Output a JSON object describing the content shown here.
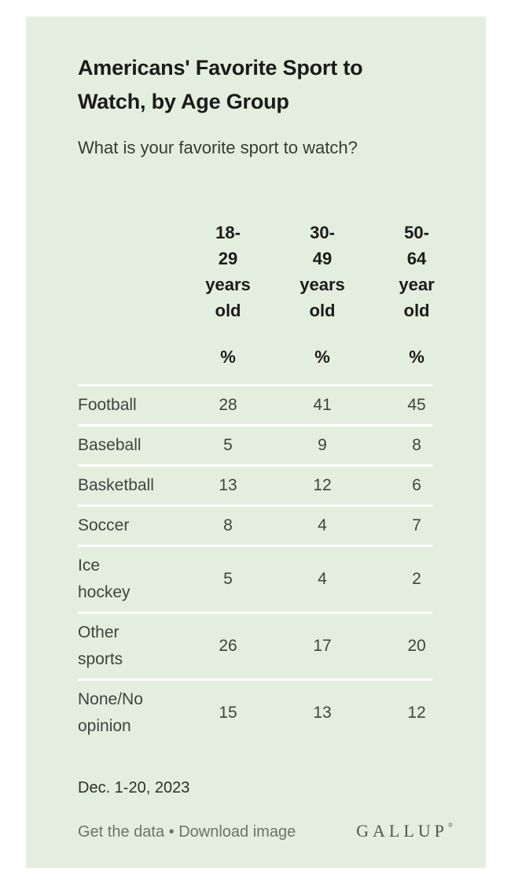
{
  "card": {
    "title": "Americans' Favorite Sport to\nWatch, by Age Group",
    "subtitle": "What is your favorite sport to watch?",
    "table": {
      "columns": [
        {
          "label": "18-\n29\nyears\nold",
          "unit": "%"
        },
        {
          "label": "30-\n49\nyears\nold",
          "unit": "%"
        },
        {
          "label": "50-\n64\nyear\nold",
          "unit": "%"
        }
      ],
      "rows": [
        {
          "label": "Football",
          "values": [
            "28",
            "41",
            "45"
          ]
        },
        {
          "label": "Baseball",
          "values": [
            "5",
            "9",
            "8"
          ]
        },
        {
          "label": "Basketball",
          "values": [
            "13",
            "12",
            "6"
          ]
        },
        {
          "label": "Soccer",
          "values": [
            "8",
            "4",
            "7"
          ]
        },
        {
          "label": "Ice\nhockey",
          "values": [
            "5",
            "4",
            "2"
          ]
        },
        {
          "label": "Other\nsports",
          "values": [
            "26",
            "17",
            "20"
          ]
        },
        {
          "label": "None/No\nopinion",
          "values": [
            "15",
            "13",
            "12"
          ]
        }
      ]
    },
    "date_note": "Dec. 1-20, 2023",
    "footer": {
      "get_data_label": "Get the data",
      "separator": "•",
      "download_label": "Download image",
      "brand": "GALLUP",
      "brand_mark": "®"
    },
    "colors": {
      "card_background": "#e4eede",
      "divider": "#ffffff",
      "title_text": "#1b1b1b",
      "body_text": "#3e4441",
      "link_text": "#6d726d",
      "brand_text": "#51554e"
    }
  },
  "chart_data": {
    "type": "table",
    "title": "Americans' Favorite Sport to Watch, by Age Group",
    "subtitle": "What is your favorite sport to watch?",
    "unit": "%",
    "categories": [
      "Football",
      "Baseball",
      "Basketball",
      "Soccer",
      "Ice hockey",
      "Other sports",
      "None/No opinion"
    ],
    "series": [
      {
        "name": "18-29 years old",
        "values": [
          28,
          5,
          13,
          8,
          5,
          26,
          15
        ]
      },
      {
        "name": "30-49 years old",
        "values": [
          41,
          9,
          12,
          4,
          4,
          17,
          13
        ]
      },
      {
        "name": "50-64 year old",
        "values": [
          45,
          8,
          6,
          7,
          2,
          20,
          12
        ]
      }
    ],
    "date_note": "Dec. 1-20, 2023",
    "source": "GALLUP"
  }
}
